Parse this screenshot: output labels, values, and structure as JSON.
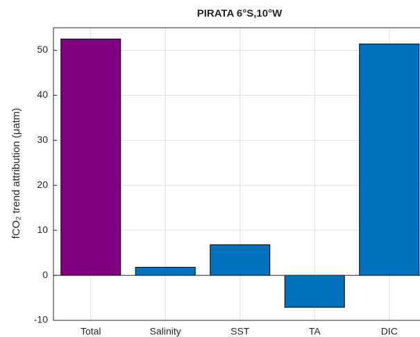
{
  "chart_data": {
    "type": "bar",
    "title": "PIRATA 6°S,10°W",
    "ylabel": "fCO₂ trend attribution (μatm)",
    "categories": [
      "Total",
      "Salinity",
      "SST",
      "TA",
      "DIC"
    ],
    "values": [
      52.5,
      1.8,
      6.8,
      -7.1,
      51.4
    ],
    "colors": [
      "#7e007e",
      "#0072bd",
      "#0072bd",
      "#0072bd",
      "#0072bd"
    ],
    "ylim": [
      -10,
      55
    ],
    "yticks": [
      -10,
      0,
      10,
      20,
      30,
      40,
      50
    ],
    "grid": true
  }
}
